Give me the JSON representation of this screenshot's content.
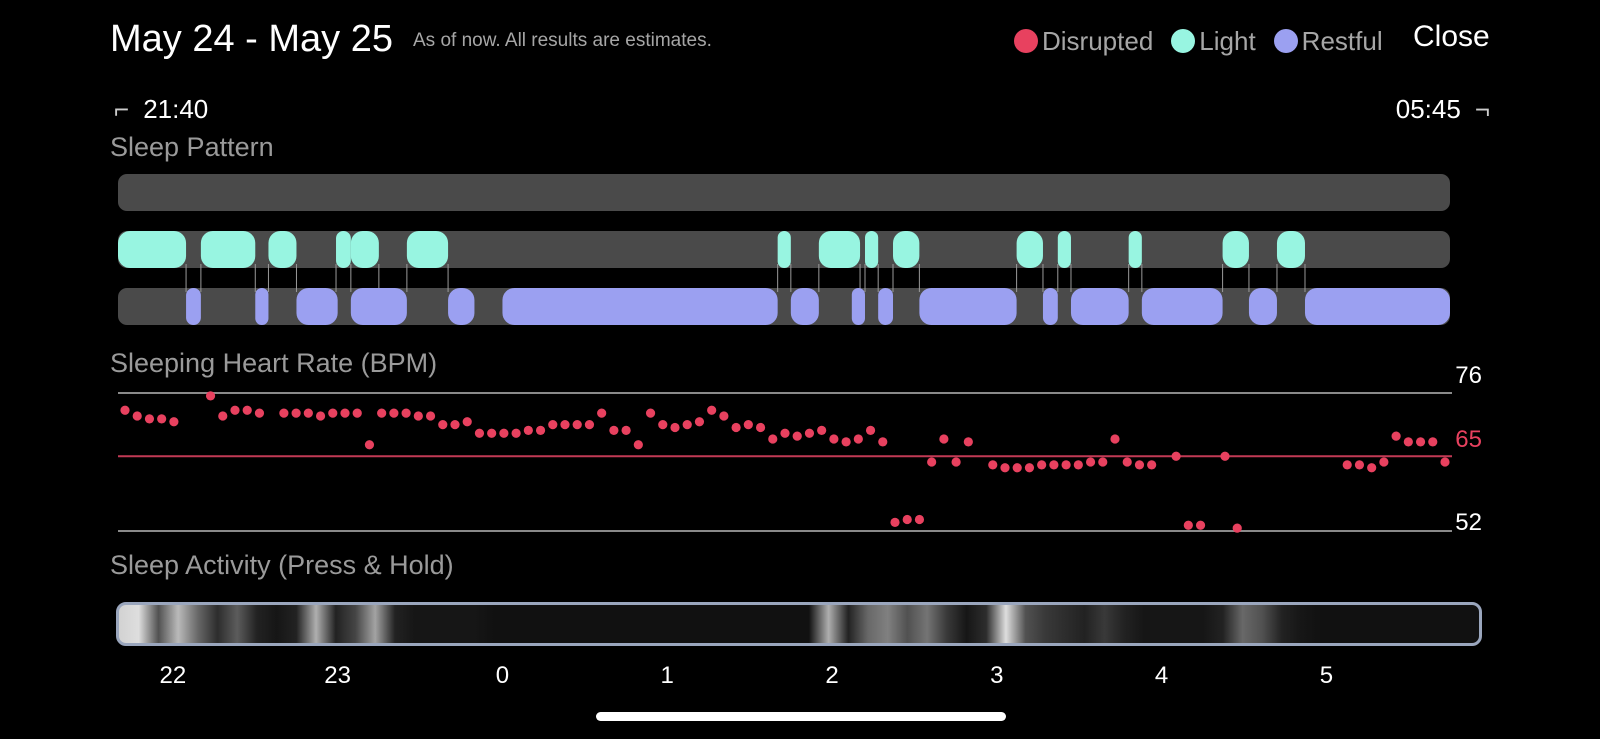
{
  "header": {
    "title": "May 24 - May 25",
    "subtitle": "As of now. All results are estimates.",
    "close_label": "Close"
  },
  "legend": [
    {
      "label": "Disrupted",
      "color": "#e8415f"
    },
    {
      "label": "Light",
      "color": "#98f5e1"
    },
    {
      "label": "Restful",
      "color": "#9ba0f1"
    }
  ],
  "time_range": {
    "start": "21:40",
    "end": "05:45"
  },
  "sleep_pattern": {
    "label": "Sleep Pattern",
    "timeline_start_hour": 21.667,
    "timeline_end_hour": 29.75,
    "light_segments": [
      [
        21.667,
        22.08
      ],
      [
        22.17,
        22.5
      ],
      [
        22.58,
        22.75
      ],
      [
        22.99,
        23.08
      ],
      [
        23.08,
        23.25
      ],
      [
        23.42,
        23.67
      ],
      [
        25.67,
        25.75
      ],
      [
        25.92,
        26.17
      ],
      [
        26.2,
        26.28
      ],
      [
        26.37,
        26.53
      ],
      [
        27.12,
        27.28
      ],
      [
        27.37,
        27.45
      ],
      [
        27.8,
        27.88
      ],
      [
        28.37,
        28.53
      ],
      [
        28.7,
        28.87
      ]
    ],
    "restful_segments": [
      [
        22.08,
        22.17
      ],
      [
        22.5,
        22.58
      ],
      [
        22.75,
        23.0
      ],
      [
        23.08,
        23.42
      ],
      [
        23.67,
        23.83
      ],
      [
        24.0,
        25.67
      ],
      [
        25.75,
        25.92
      ],
      [
        26.12,
        26.2
      ],
      [
        26.28,
        26.37
      ],
      [
        26.53,
        27.12
      ],
      [
        27.28,
        27.37
      ],
      [
        27.45,
        27.8
      ],
      [
        27.88,
        28.37
      ],
      [
        28.53,
        28.7
      ],
      [
        28.87,
        29.75
      ]
    ]
  },
  "heart_rate": {
    "label": "Sleeping Heart Rate (BPM)",
    "max": 76,
    "avg": 65,
    "min": 52,
    "max_label": "76",
    "avg_label": "65",
    "min_label": "52",
    "samples": [
      73,
      72,
      71.5,
      71.5,
      71,
      null,
      null,
      75.5,
      72,
      73,
      73,
      72.5,
      null,
      72.5,
      72.5,
      72.5,
      72,
      72.5,
      72.5,
      72.5,
      67,
      72.5,
      72.5,
      72.5,
      72,
      72,
      70.5,
      70.5,
      71,
      69,
      69,
      69,
      69,
      69.5,
      69.5,
      70.5,
      70.5,
      70.5,
      70.5,
      72.5,
      69.5,
      69.5,
      67,
      72.5,
      70.5,
      70,
      70.5,
      71,
      73,
      72,
      70,
      70.5,
      70,
      68,
      69,
      68.5,
      69,
      69.5,
      68,
      67.5,
      68,
      69.5,
      67.5,
      53.5,
      54,
      54,
      64,
      68,
      64,
      67.5,
      null,
      63.5,
      63,
      63,
      63,
      63.5,
      63.5,
      63.5,
      63.5,
      64,
      64,
      68,
      64,
      63.5,
      63.5,
      null,
      65,
      53,
      53,
      null,
      65,
      52.5,
      null,
      null,
      null,
      null,
      null,
      null,
      null,
      null,
      63.5,
      63.5,
      63,
      64,
      68.5,
      67.5,
      67.5,
      67.5,
      64
    ]
  },
  "sleep_activity": {
    "label": "Sleep Activity (Press & Hold)",
    "intensity": [
      0.85,
      0.9,
      0.3,
      0.75,
      0.4,
      0.15,
      0.35,
      0.1,
      0.05,
      0.1,
      0.7,
      0.1,
      0.25,
      0.65,
      0.1,
      0.05,
      0.05,
      0.05,
      0.05,
      0.03,
      0.03,
      0.03,
      0.03,
      0.03,
      0.03,
      0.03,
      0.03,
      0.03,
      0.03,
      0.03,
      0.03,
      0.03,
      0.03,
      0.03,
      0.03,
      0.03,
      0.7,
      0.1,
      0.4,
      0.5,
      0.3,
      0.45,
      0.2,
      0.05,
      0.15,
      0.9,
      0.3,
      0.2,
      0.15,
      0.1,
      0.2,
      0.1,
      0.05,
      0.05,
      0.05,
      0.05,
      0.1,
      0.4,
      0.3,
      0.1,
      0.05,
      0.03,
      0.03,
      0.03,
      0.03,
      0.03,
      0.03,
      0.03,
      0.03,
      0.03
    ]
  },
  "x_axis": {
    "ticks": [
      {
        "label": "22",
        "hour": 22
      },
      {
        "label": "23",
        "hour": 23
      },
      {
        "label": "0",
        "hour": 24
      },
      {
        "label": "1",
        "hour": 25
      },
      {
        "label": "2",
        "hour": 26
      },
      {
        "label": "3",
        "hour": 27
      },
      {
        "label": "4",
        "hour": 28
      },
      {
        "label": "5",
        "hour": 29
      }
    ]
  }
}
